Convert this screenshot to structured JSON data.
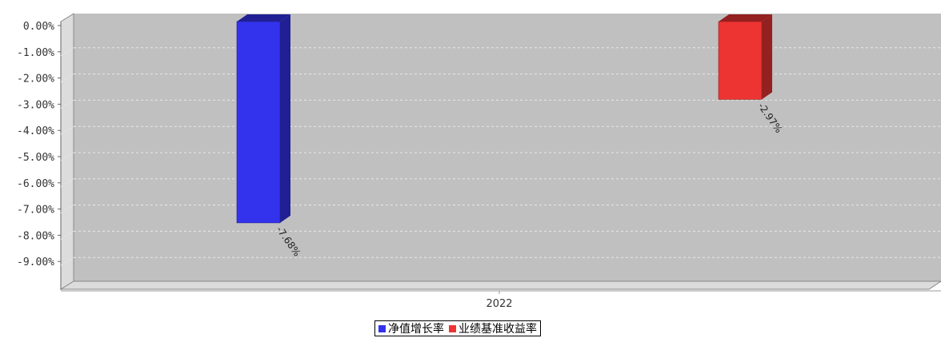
{
  "chart_data": {
    "type": "bar",
    "title": "",
    "categories": [
      "2022"
    ],
    "ylim": [
      -10,
      0
    ],
    "y_ticks": [
      "0.00%",
      "-1.00%",
      "-2.00%",
      "-3.00%",
      "-4.00%",
      "-5.00%",
      "-6.00%",
      "-7.00%",
      "-8.00%",
      "-9.00%"
    ],
    "series": [
      {
        "name": "净值增长率",
        "color": "#3333ee",
        "values": [
          -7.68
        ],
        "label": "-7.68%"
      },
      {
        "name": "业绩基准收益率",
        "color": "#ee3333",
        "values": [
          -2.97
        ],
        "label": "-2.97%"
      }
    ],
    "grid": true,
    "legend": "bottom"
  }
}
